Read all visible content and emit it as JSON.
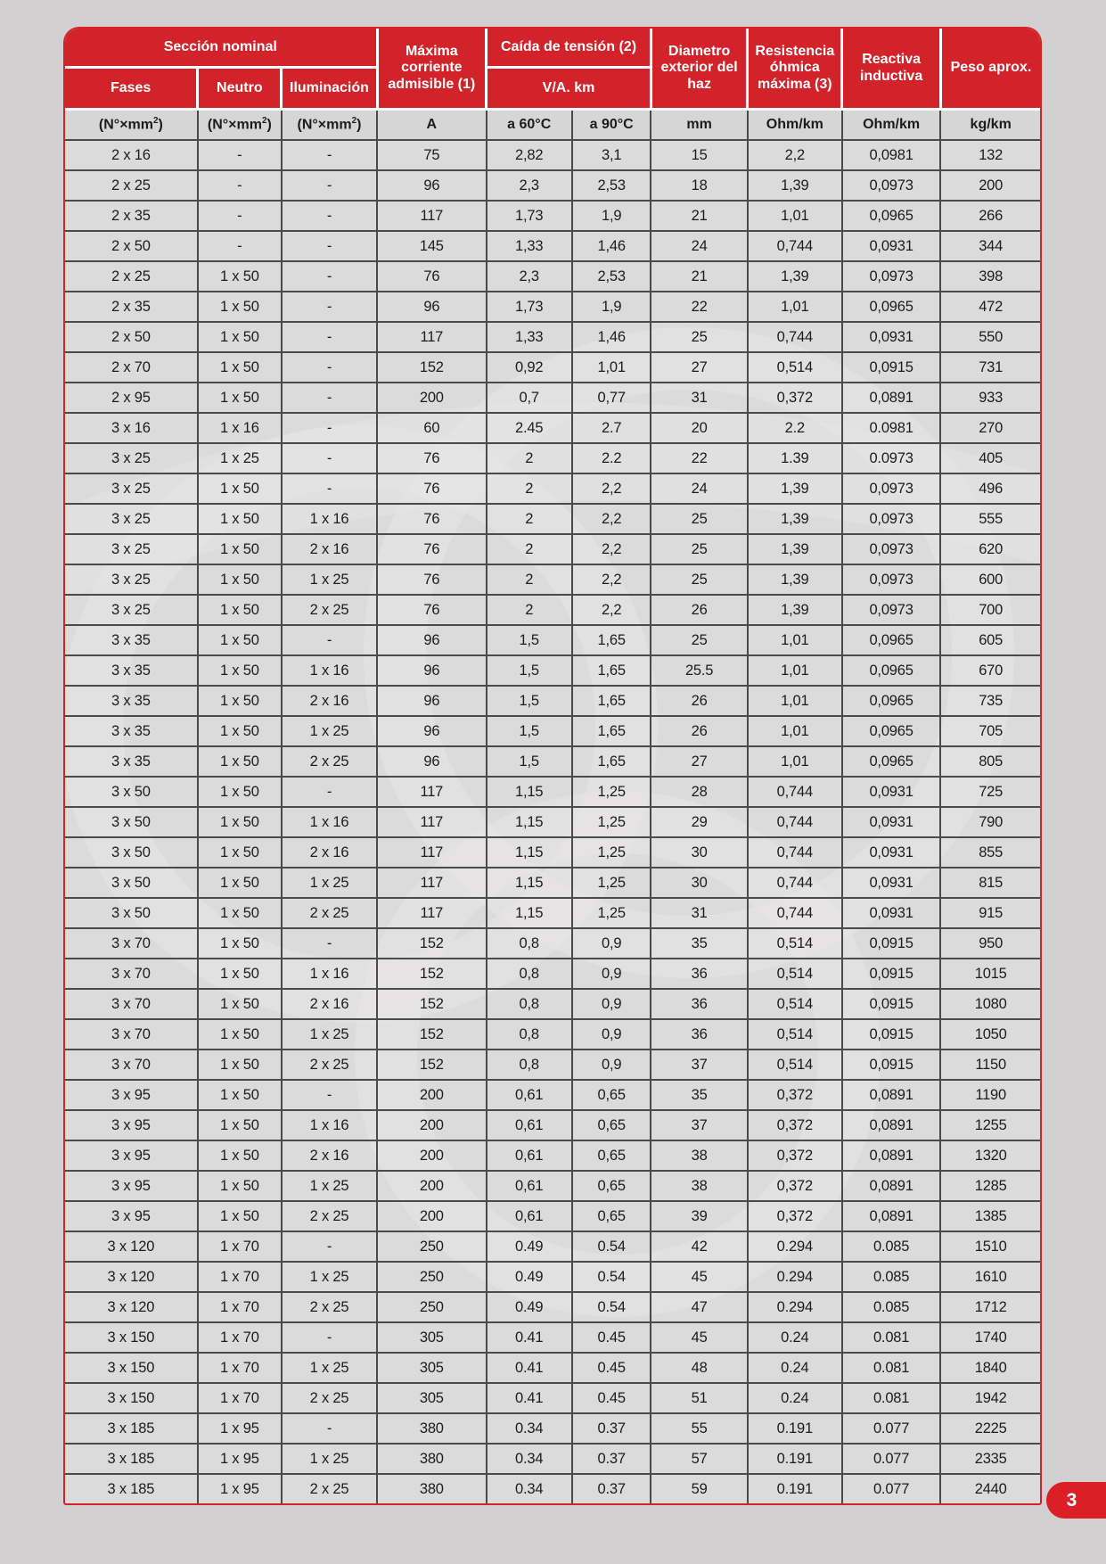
{
  "page": {
    "number": "3"
  },
  "colors": {
    "header_red": "#d2232a",
    "badge_red": "#da1f26",
    "page_background": "#d2d0d1",
    "row_background": "#dcdbdb",
    "grid_line": "#4a4a4a"
  },
  "table": {
    "header": {
      "seccion_nominal": "Sección nominal",
      "fases": "Fases",
      "neutro": "Neutro",
      "iluminacion": "Iluminación",
      "maxima_corriente": "Máxima corriente admisible (1)",
      "caida_tension": "Caída de tensión (2)",
      "va_km": "V/A. km",
      "diametro": "Diametro exterior del haz",
      "resistencia": "Resistencia óhmica máxima (3)",
      "reactiva": "Reactiva inductiva",
      "peso": "Peso aprox."
    },
    "units": [
      "(N°×mm²)",
      "(N°×mm²)",
      "(N°×mm²)",
      "A",
      "a 60°C",
      "a 90°C",
      "mm",
      "Ohm/km",
      "Ohm/km",
      "kg/km"
    ],
    "rows": [
      [
        "2 x 16",
        "-",
        "-",
        "75",
        "2,82",
        "3,1",
        "15",
        "2,2",
        "0,0981",
        "132"
      ],
      [
        "2 x 25",
        "-",
        "-",
        "96",
        "2,3",
        "2,53",
        "18",
        "1,39",
        "0,0973",
        "200"
      ],
      [
        "2 x 35",
        "-",
        "-",
        "117",
        "1,73",
        "1,9",
        "21",
        "1,01",
        "0,0965",
        "266"
      ],
      [
        "2 x 50",
        "-",
        "-",
        "145",
        "1,33",
        "1,46",
        "24",
        "0,744",
        "0,0931",
        "344"
      ],
      [
        "2 x 25",
        "1 x 50",
        "-",
        "76",
        "2,3",
        "2,53",
        "21",
        "1,39",
        "0,0973",
        "398"
      ],
      [
        "2 x 35",
        "1 x 50",
        "-",
        "96",
        "1,73",
        "1,9",
        "22",
        "1,01",
        "0,0965",
        "472"
      ],
      [
        "2 x 50",
        "1 x 50",
        "-",
        "117",
        "1,33",
        "1,46",
        "25",
        "0,744",
        "0,0931",
        "550"
      ],
      [
        "2 x 70",
        "1 x 50",
        "-",
        "152",
        "0,92",
        "1,01",
        "27",
        "0,514",
        "0,0915",
        "731"
      ],
      [
        "2 x 95",
        "1 x 50",
        "-",
        "200",
        "0,7",
        "0,77",
        "31",
        "0,372",
        "0,0891",
        "933"
      ],
      [
        "3 x 16",
        "1 x 16",
        "-",
        "60",
        "2.45",
        "2.7",
        "20",
        "2.2",
        "0.0981",
        "270"
      ],
      [
        "3 x 25",
        "1 x 25",
        "-",
        "76",
        "2",
        "2.2",
        "22",
        "1.39",
        "0.0973",
        "405"
      ],
      [
        "3 x 25",
        "1 x 50",
        "-",
        "76",
        "2",
        "2,2",
        "24",
        "1,39",
        "0,0973",
        "496"
      ],
      [
        "3 x 25",
        "1 x 50",
        "1 x 16",
        "76",
        "2",
        "2,2",
        "25",
        "1,39",
        "0,0973",
        "555"
      ],
      [
        "3 x 25",
        "1 x 50",
        "2 x 16",
        "76",
        "2",
        "2,2",
        "25",
        "1,39",
        "0,0973",
        "620"
      ],
      [
        "3 x 25",
        "1 x 50",
        "1 x 25",
        "76",
        "2",
        "2,2",
        "25",
        "1,39",
        "0,0973",
        "600"
      ],
      [
        "3 x 25",
        "1 x 50",
        "2 x 25",
        "76",
        "2",
        "2,2",
        "26",
        "1,39",
        "0,0973",
        "700"
      ],
      [
        "3 x 35",
        "1 x 50",
        "-",
        "96",
        "1,5",
        "1,65",
        "25",
        "1,01",
        "0,0965",
        "605"
      ],
      [
        "3 x 35",
        "1 x 50",
        "1 x 16",
        "96",
        "1,5",
        "1,65",
        "25.5",
        "1,01",
        "0,0965",
        "670"
      ],
      [
        "3 x 35",
        "1 x 50",
        "2 x 16",
        "96",
        "1,5",
        "1,65",
        "26",
        "1,01",
        "0,0965",
        "735"
      ],
      [
        "3 x 35",
        "1 x 50",
        "1 x 25",
        "96",
        "1,5",
        "1,65",
        "26",
        "1,01",
        "0,0965",
        "705"
      ],
      [
        "3 x 35",
        "1 x 50",
        "2 x 25",
        "96",
        "1,5",
        "1,65",
        "27",
        "1,01",
        "0,0965",
        "805"
      ],
      [
        "3 x 50",
        "1 x 50",
        "-",
        "117",
        "1,15",
        "1,25",
        "28",
        "0,744",
        "0,0931",
        "725"
      ],
      [
        "3 x 50",
        "1 x 50",
        "1 x 16",
        "117",
        "1,15",
        "1,25",
        "29",
        "0,744",
        "0,0931",
        "790"
      ],
      [
        "3 x 50",
        "1 x 50",
        "2 x 16",
        "117",
        "1,15",
        "1,25",
        "30",
        "0,744",
        "0,0931",
        "855"
      ],
      [
        "3 x 50",
        "1 x 50",
        "1 x 25",
        "117",
        "1,15",
        "1,25",
        "30",
        "0,744",
        "0,0931",
        "815"
      ],
      [
        "3 x 50",
        "1 x 50",
        "2 x 25",
        "117",
        "1,15",
        "1,25",
        "31",
        "0,744",
        "0,0931",
        "915"
      ],
      [
        "3 x 70",
        "1 x 50",
        "-",
        "152",
        "0,8",
        "0,9",
        "35",
        "0,514",
        "0,0915",
        "950"
      ],
      [
        "3 x 70",
        "1 x 50",
        "1 x 16",
        "152",
        "0,8",
        "0,9",
        "36",
        "0,514",
        "0,0915",
        "1015"
      ],
      [
        "3 x 70",
        "1 x 50",
        "2 x 16",
        "152",
        "0,8",
        "0,9",
        "36",
        "0,514",
        "0,0915",
        "1080"
      ],
      [
        "3 x 70",
        "1 x 50",
        "1 x 25",
        "152",
        "0,8",
        "0,9",
        "36",
        "0,514",
        "0,0915",
        "1050"
      ],
      [
        "3 x 70",
        "1 x 50",
        "2 x 25",
        "152",
        "0,8",
        "0,9",
        "37",
        "0,514",
        "0,0915",
        "1150"
      ],
      [
        "3 x 95",
        "1 x 50",
        "-",
        "200",
        "0,61",
        "0,65",
        "35",
        "0,372",
        "0,0891",
        "1190"
      ],
      [
        "3 x 95",
        "1 x 50",
        "1 x 16",
        "200",
        "0,61",
        "0,65",
        "37",
        "0,372",
        "0,0891",
        "1255"
      ],
      [
        "3 x 95",
        "1 x 50",
        "2 x 16",
        "200",
        "0,61",
        "0,65",
        "38",
        "0,372",
        "0,0891",
        "1320"
      ],
      [
        "3 x 95",
        "1 x 50",
        "1 x 25",
        "200",
        "0,61",
        "0,65",
        "38",
        "0,372",
        "0,0891",
        "1285"
      ],
      [
        "3 x 95",
        "1 x 50",
        "2 x 25",
        "200",
        "0,61",
        "0,65",
        "39",
        "0,372",
        "0,0891",
        "1385"
      ],
      [
        "3 x 120",
        "1 x 70",
        "-",
        "250",
        "0.49",
        "0.54",
        "42",
        "0.294",
        "0.085",
        "1510"
      ],
      [
        "3 x 120",
        "1 x 70",
        "1 x 25",
        "250",
        "0.49",
        "0.54",
        "45",
        "0.294",
        "0.085",
        "1610"
      ],
      [
        "3 x 120",
        "1 x 70",
        "2 x 25",
        "250",
        "0.49",
        "0.54",
        "47",
        "0.294",
        "0.085",
        "1712"
      ],
      [
        "3 x 150",
        "1 x 70",
        "-",
        "305",
        "0.41",
        "0.45",
        "45",
        "0.24",
        "0.081",
        "1740"
      ],
      [
        "3 x 150",
        "1 x 70",
        "1 x 25",
        "305",
        "0.41",
        "0.45",
        "48",
        "0.24",
        "0.081",
        "1840"
      ],
      [
        "3 x 150",
        "1 x 70",
        "2 x 25",
        "305",
        "0.41",
        "0.45",
        "51",
        "0.24",
        "0.081",
        "1942"
      ],
      [
        "3 x 185",
        "1 x 95",
        "-",
        "380",
        "0.34",
        "0.37",
        "55",
        "0.191",
        "0.077",
        "2225"
      ],
      [
        "3 x 185",
        "1 x 95",
        "1 x 25",
        "380",
        "0.34",
        "0.37",
        "57",
        "0.191",
        "0.077",
        "2335"
      ],
      [
        "3 x 185",
        "1 x 95",
        "2 x 25",
        "380",
        "0.34",
        "0.37",
        "59",
        "0.191",
        "0.077",
        "2440"
      ]
    ]
  }
}
